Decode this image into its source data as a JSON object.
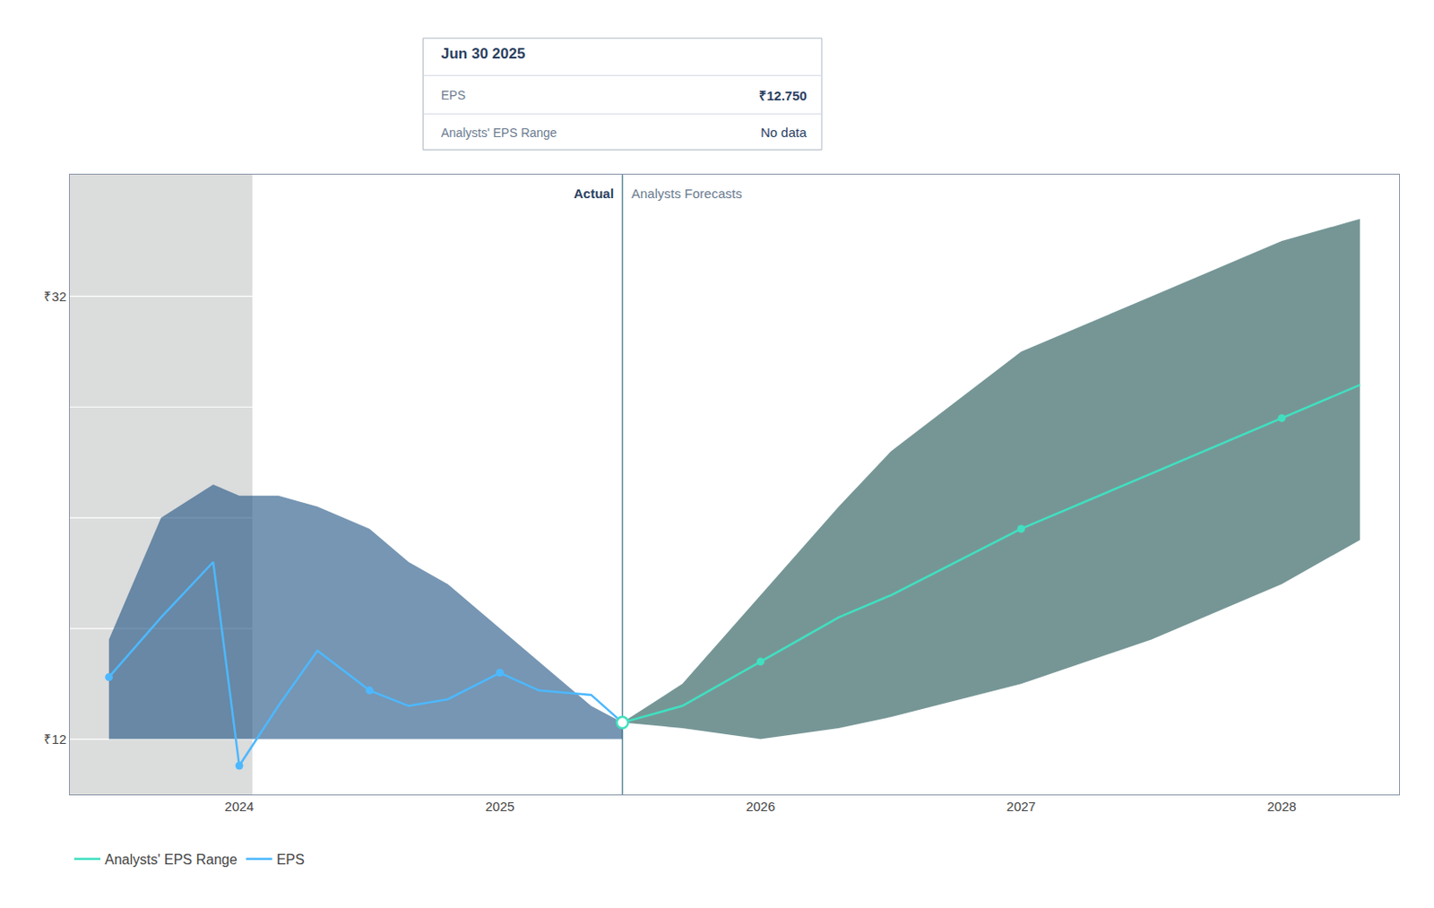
{
  "chart_data": {
    "type": "line",
    "xlim": [
      2023.35,
      2028.45
    ],
    "ylim": [
      9.5,
      37.5
    ],
    "xticks": [
      2024,
      2025,
      2026,
      2027,
      2028
    ],
    "yticks": [
      {
        "value": 12,
        "label": "₹12"
      },
      {
        "value": 32,
        "label": "₹32"
      }
    ],
    "grid": true,
    "gridlines": [
      12,
      17,
      22,
      27,
      32
    ],
    "legend": "bottom left",
    "series": [
      {
        "type": "band",
        "color": "#1a5080",
        "x": [
          2023.5,
          2023.7,
          2023.9,
          2024.0,
          2024.15,
          2024.3,
          2024.5,
          2024.65,
          2024.8,
          2025.0,
          2025.15,
          2025.35,
          2025.47
        ],
        "upper": [
          16.5,
          22.0,
          23.5,
          23.0,
          23.0,
          22.5,
          21.5,
          20.0,
          19.0,
          17.0,
          15.5,
          13.5,
          12.75
        ],
        "lower": [
          12.0,
          12.0,
          12.0,
          12.0,
          12.0,
          12.0,
          12.0,
          12.0,
          12.0,
          12.0,
          12.0,
          12.0,
          12.0
        ]
      },
      {
        "type": "band",
        "color": "#1a5050",
        "x": [
          2025.47,
          2025.7,
          2026.0,
          2026.3,
          2026.5,
          2027.0,
          2027.5,
          2028.0,
          2028.3
        ],
        "upper": [
          12.75,
          14.5,
          18.5,
          22.5,
          25.0,
          29.5,
          32.0,
          34.5,
          35.5
        ],
        "lower": [
          12.75,
          12.5,
          12.0,
          12.5,
          13.0,
          14.5,
          16.5,
          19.0,
          21.0
        ]
      },
      {
        "name": "EPS",
        "type": "line",
        "color": "#4db8ff",
        "x": [
          2023.5,
          2023.7,
          2023.9,
          2024.0,
          2024.15,
          2024.3,
          2024.5,
          2024.65,
          2024.8,
          2025.0,
          2025.15,
          2025.35,
          2025.47
        ],
        "values": [
          14.8,
          17.5,
          20.0,
          10.8,
          13.5,
          16.0,
          14.2,
          13.5,
          13.8,
          15.0,
          14.2,
          14.0,
          12.75
        ]
      },
      {
        "name": "Analysts' EPS Range",
        "type": "line",
        "color": "#40e0c0",
        "x": [
          2025.47,
          2025.7,
          2026.0,
          2026.3,
          2026.5,
          2027.0,
          2027.5,
          2028.0,
          2028.3
        ],
        "values": [
          12.75,
          13.5,
          15.5,
          17.5,
          18.5,
          21.5,
          24.0,
          26.5,
          28.0
        ]
      },
      {
        "type": "scatter",
        "marker": "circle",
        "color": "#4db8ff",
        "x": [
          2023.5,
          2024.0,
          2024.5,
          2025.0
        ],
        "values": [
          14.8,
          10.8,
          14.2,
          15.0
        ]
      },
      {
        "type": "scatter",
        "marker": "circle",
        "color": "#40e0c0",
        "x": [
          2026.0,
          2027.0,
          2028.0
        ],
        "values": [
          15.5,
          21.5,
          26.5
        ]
      },
      {
        "type": "scatter",
        "marker": "open circle",
        "color": "#40e0c0",
        "x": [
          2025.47
        ],
        "values": [
          12.75
        ]
      }
    ],
    "shaded_region": {
      "x": [
        2023.35,
        2024.05
      ],
      "color": "#0d1117"
    },
    "divider": {
      "x": 2025.47,
      "color": "#5a8a9a"
    },
    "annotations": [
      {
        "text": "Actual",
        "x": 2025.47
      },
      {
        "text": "Analysts Forecasts",
        "x": 2025.47
      }
    ],
    "tooltip": {
      "title": "Jun 30 2025",
      "rows": [
        {
          "label": "EPS",
          "value": "₹12.750"
        },
        {
          "label": "Analysts' EPS Range",
          "value": "No data"
        }
      ]
    }
  }
}
